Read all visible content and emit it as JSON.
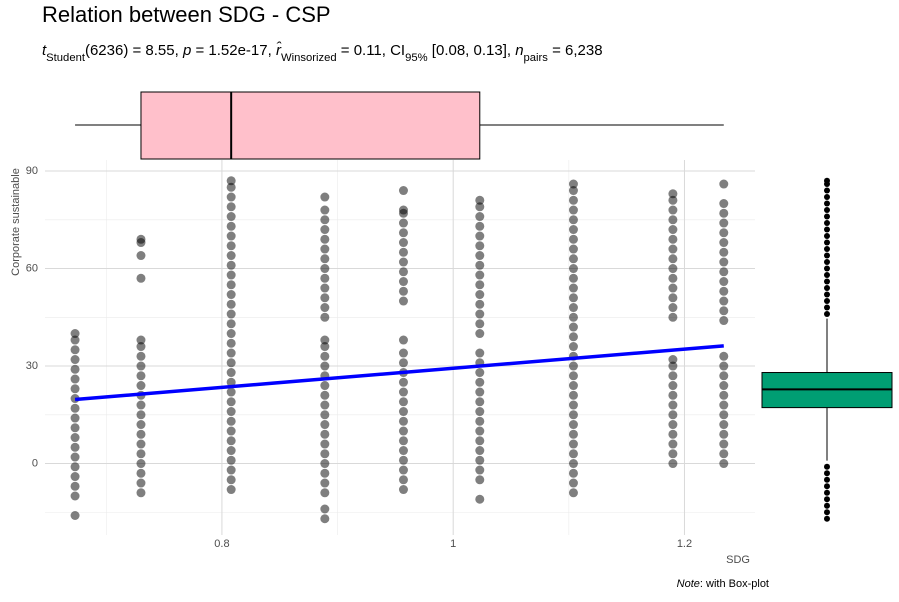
{
  "chart_data": {
    "type": "scatter",
    "title": "Relation between SDG - CSP",
    "subtitle": [
      {
        "text": "t",
        "style": "italic"
      },
      {
        "text": "Student",
        "style": "sub"
      },
      {
        "text": "(6236) = 8.55, ",
        "style": "normal"
      },
      {
        "text": "p",
        "style": "italic"
      },
      {
        "text": " = 1.52e-17, ",
        "style": "normal"
      },
      {
        "text": "r̂",
        "style": "italic"
      },
      {
        "text": "Winsorized",
        "style": "sub"
      },
      {
        "text": " = 0.11, CI",
        "style": "normal"
      },
      {
        "text": "95%",
        "style": "sub"
      },
      {
        "text": " [0.08, 0.13], ",
        "style": "normal"
      },
      {
        "text": "n",
        "style": "italic"
      },
      {
        "text": "pairs",
        "style": "sub"
      },
      {
        "text": " = 6,238",
        "style": "normal"
      }
    ],
    "caption": [
      {
        "text": "Note",
        "style": "italic"
      },
      {
        "text": ": with Box-plot",
        "style": "normal"
      }
    ],
    "x_label": "SDG",
    "y_label": "Corporate sustainable",
    "xlim": [
      0.647,
      1.261
    ],
    "ylim": [
      -22,
      93.4
    ],
    "xticks": [
      0.8,
      1,
      1.2
    ],
    "yticks": [
      0,
      30,
      60,
      90
    ],
    "grid": true,
    "point_color": "#000000",
    "point_alpha": 0.5,
    "columns": [
      {
        "x": 0.673,
        "values": [
          -16,
          -10,
          -7,
          -4,
          -1,
          2,
          5,
          8,
          11,
          14,
          17,
          20,
          23,
          26,
          29,
          32,
          35,
          38,
          40
        ]
      },
      {
        "x": 0.73,
        "values": [
          -9,
          -6,
          -3,
          0,
          3,
          6,
          9,
          12,
          15,
          18,
          21,
          24,
          27,
          30,
          33,
          36,
          38,
          57,
          64,
          68,
          69
        ]
      },
      {
        "x": 0.808,
        "values": [
          -8,
          -5,
          -2,
          1,
          4,
          7,
          10,
          13,
          16,
          19,
          22,
          25,
          28,
          31,
          34,
          37,
          40,
          43,
          46,
          49,
          52,
          55,
          58,
          61,
          64,
          67,
          70,
          73,
          76,
          79,
          82,
          85,
          87
        ]
      },
      {
        "x": 0.889,
        "values": [
          -17,
          -14,
          -9,
          -6,
          -3,
          0,
          3,
          6,
          9,
          12,
          15,
          18,
          21,
          24,
          27,
          30,
          33,
          36,
          38,
          45,
          48,
          51,
          54,
          57,
          60,
          63,
          66,
          69,
          72,
          75,
          78,
          82
        ]
      },
      {
        "x": 0.957,
        "values": [
          -8,
          -5,
          -2,
          1,
          4,
          7,
          10,
          13,
          16,
          19,
          22,
          25,
          28,
          31,
          34,
          38,
          50,
          53,
          56,
          59,
          62,
          65,
          68,
          71,
          74,
          77,
          78,
          84
        ]
      },
      {
        "x": 1.023,
        "values": [
          -11,
          -5,
          -2,
          1,
          4,
          7,
          10,
          13,
          16,
          19,
          22,
          25,
          28,
          31,
          34,
          40,
          43,
          46,
          49,
          52,
          55,
          58,
          61,
          64,
          67,
          70,
          73,
          76,
          79,
          81
        ]
      },
      {
        "x": 1.104,
        "values": [
          -9,
          -6,
          -3,
          0,
          3,
          6,
          9,
          12,
          15,
          18,
          21,
          24,
          27,
          30,
          33,
          36,
          39,
          42,
          45,
          48,
          51,
          54,
          57,
          60,
          63,
          66,
          69,
          72,
          75,
          78,
          81,
          84,
          86
        ]
      },
      {
        "x": 1.19,
        "values": [
          0,
          3,
          6,
          9,
          12,
          15,
          18,
          21,
          24,
          27,
          30,
          32,
          45,
          48,
          51,
          54,
          57,
          60,
          63,
          66,
          69,
          72,
          75,
          78,
          81,
          83
        ]
      },
      {
        "x": 1.234,
        "values": [
          0,
          3,
          6,
          9,
          12,
          15,
          18,
          21,
          24,
          27,
          30,
          33,
          44,
          47,
          50,
          53,
          56,
          59,
          62,
          65,
          68,
          71,
          74,
          77,
          80,
          86
        ]
      }
    ],
    "fit_line": {
      "x": [
        0.673,
        1.234
      ],
      "y": [
        19.7,
        36.2
      ],
      "color": "#0000ff"
    },
    "x_box": {
      "min": 0.673,
      "q1": 0.73,
      "median": 0.808,
      "q3": 1.023,
      "max": 1.234,
      "color": "#ffc0cb"
    },
    "y_box": {
      "min": 0.9,
      "q1": 17.2,
      "median": 22.8,
      "q3": 28.0,
      "max": 44.6,
      "color": "#009e73",
      "outliers": [
        46,
        48,
        50,
        52,
        54,
        56,
        58,
        60,
        62,
        64,
        66,
        68,
        70,
        72,
        74,
        76,
        78,
        80,
        82,
        84,
        86,
        87,
        -1,
        -3,
        -5,
        -7,
        -9,
        -11,
        -13,
        -15,
        -17
      ]
    }
  }
}
